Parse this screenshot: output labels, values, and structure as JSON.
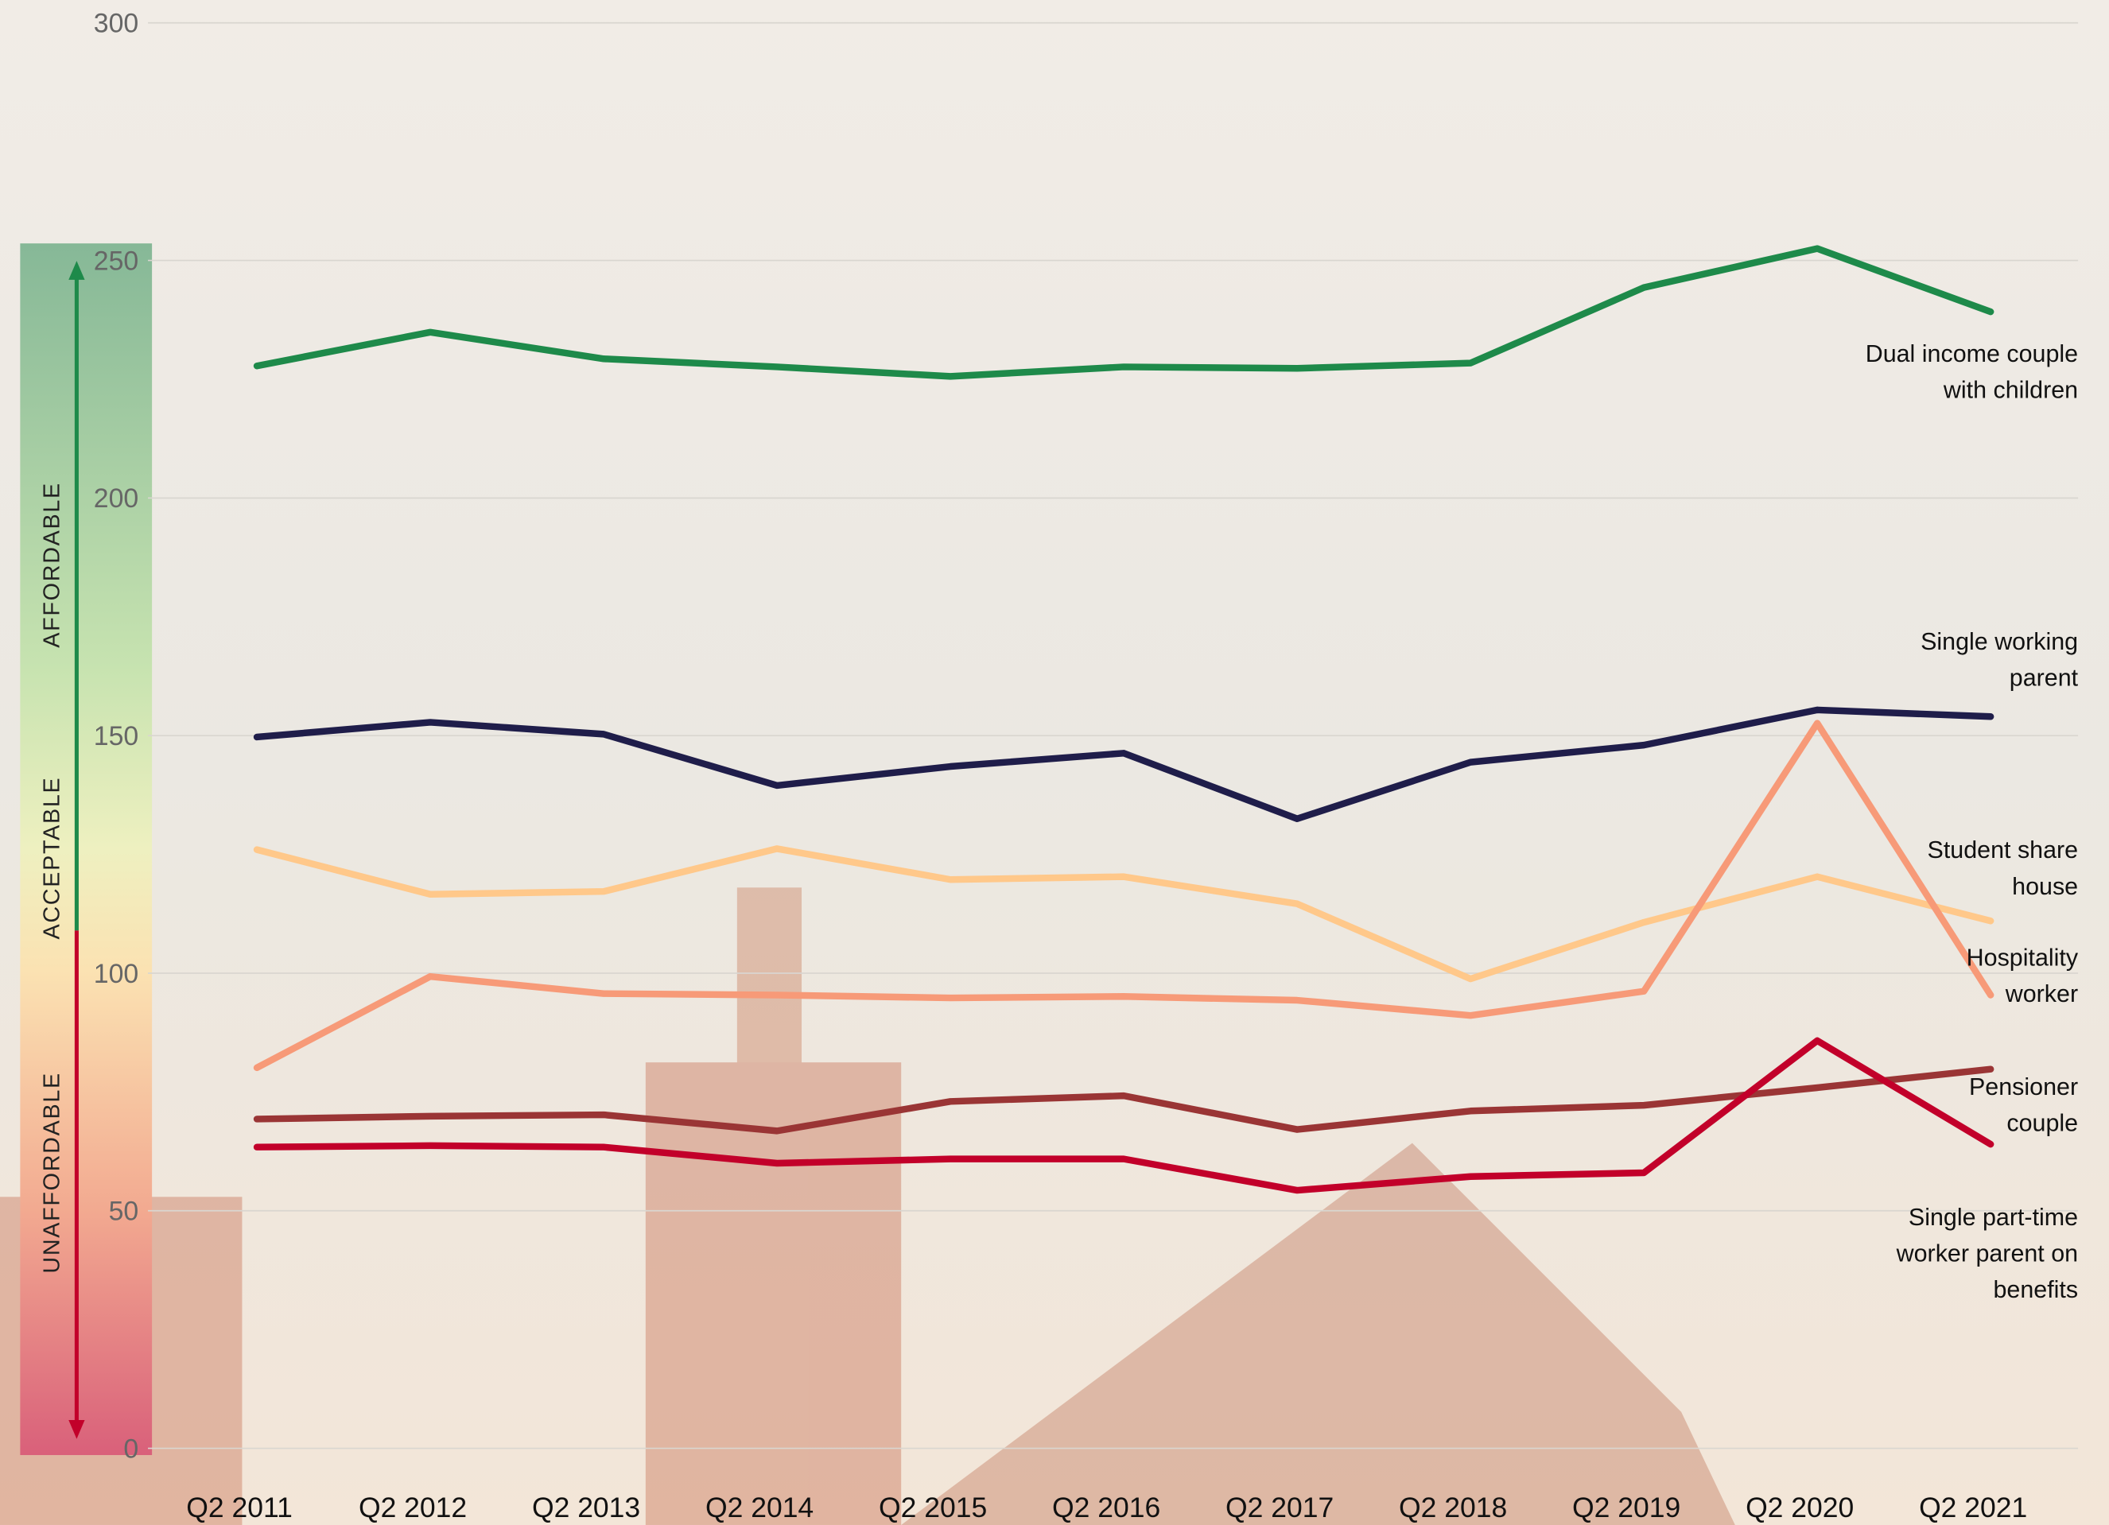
{
  "chart_data": {
    "type": "line",
    "categories": [
      "Q2 2011",
      "Q2 2012",
      "Q2 2013",
      "Q2 2014",
      "Q2 2015",
      "Q2 2016",
      "Q2 2017",
      "Q2 2018",
      "Q2 2019",
      "Q2 2020",
      "Q2 2021"
    ],
    "series": [
      {
        "name": "Dual income couple with children",
        "color": "#1e8a4a",
        "values": [
          227.8,
          234.9,
          229.3,
          227.6,
          225.6,
          227.6,
          227.3,
          228.4,
          244.3,
          252.5,
          239.2
        ]
      },
      {
        "name": "Single working parent",
        "color": "#1f1d4a",
        "values": [
          149.7,
          152.8,
          150.3,
          139.5,
          143.5,
          146.3,
          132.5,
          144.4,
          148.0,
          155.4,
          154.0
        ]
      },
      {
        "name": "Student share house",
        "color": "#ffc88a",
        "values": [
          126.0,
          116.6,
          117.2,
          126.2,
          119.7,
          120.3,
          114.6,
          98.8,
          110.7,
          120.3,
          111.0
        ]
      },
      {
        "name": "Hospitality worker",
        "color": "#f79a78",
        "values": [
          80.1,
          99.3,
          95.7,
          95.4,
          94.8,
          95.1,
          94.3,
          91.1,
          96.2,
          152.6,
          95.4
        ]
      },
      {
        "name": "Pensioner couple",
        "color": "#9a3535",
        "values": [
          69.3,
          69.9,
          70.2,
          66.8,
          73.0,
          74.2,
          67.1,
          71.0,
          72.2,
          75.9,
          79.8
        ]
      },
      {
        "name": "Single part-time worker parent on benefits",
        "color": "#c2002a",
        "values": [
          63.4,
          63.7,
          63.4,
          60.0,
          60.9,
          60.9,
          54.3,
          57.2,
          58.0,
          85.8,
          64.0
        ]
      }
    ],
    "ylim": [
      0,
      300
    ],
    "yticks": [
      0,
      50,
      100,
      150,
      200,
      250,
      300
    ],
    "grid": true,
    "zones": [
      "AFFORDABLE",
      "ACCEPTABLE",
      "UNAFFORDABLE"
    ]
  }
}
